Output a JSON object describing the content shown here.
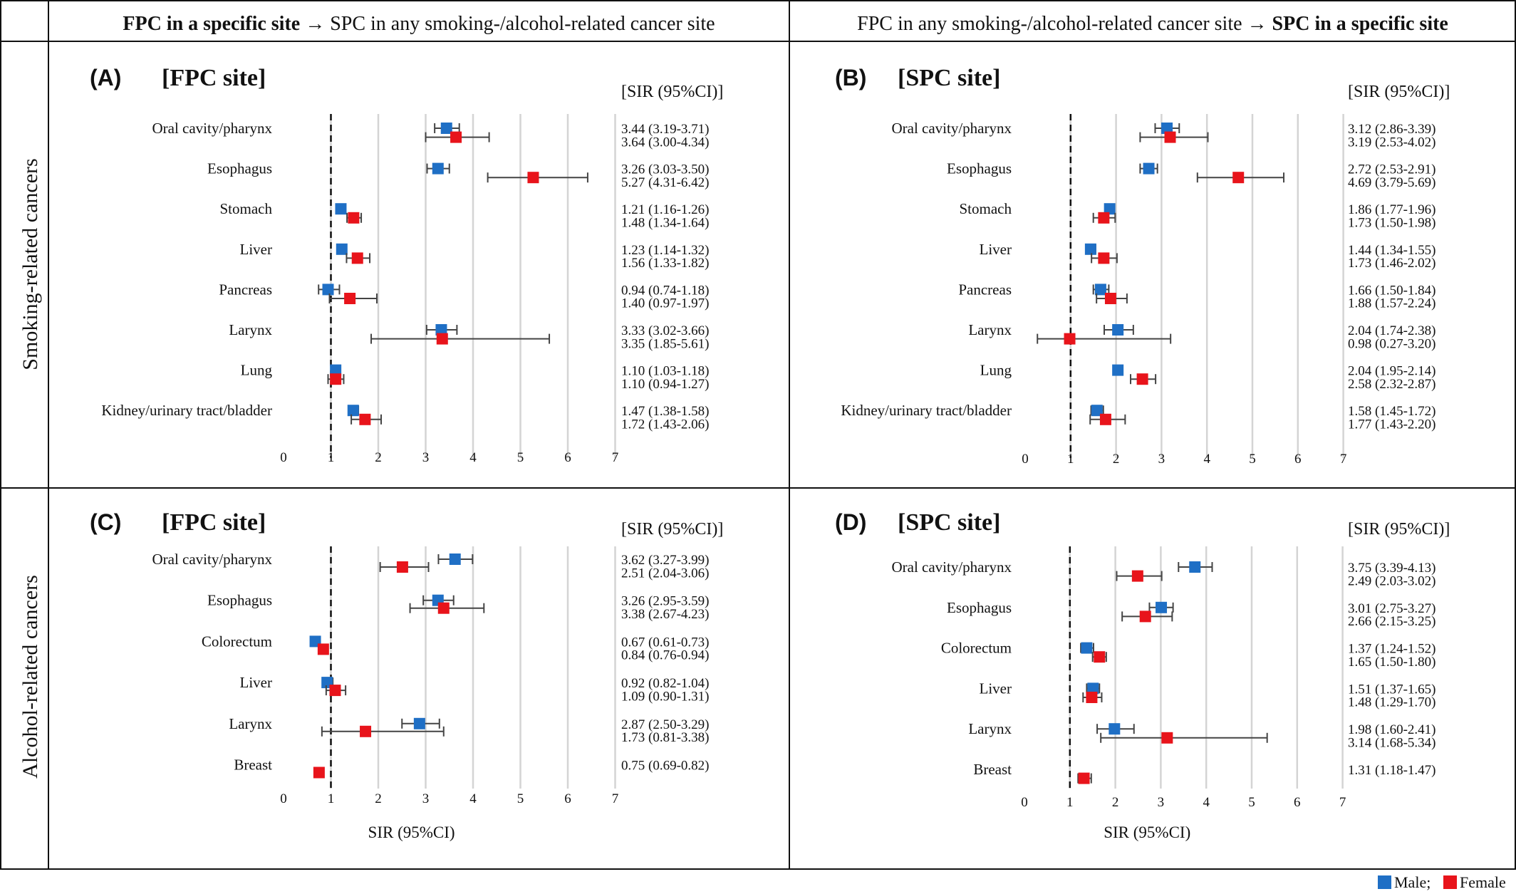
{
  "header": {
    "left": {
      "bold": "FPC in a specific site",
      "rest": " → SPC in any smoking-/alcohol-related  cancer site"
    },
    "right": {
      "rest": "FPC in any smoking-/alcohol-related cancer site → ",
      "bold": "SPC in a specific site"
    }
  },
  "rows": {
    "smoking": "Smoking-related cancers",
    "alcohol": "Alcohol-related cancers"
  },
  "legend": {
    "male": "Male;",
    "female": "Female",
    "male_color": "#1f6fc5",
    "female_color": "#e8141b"
  },
  "chart_data": [
    {
      "type": "forest",
      "panel": "(A)",
      "title": "[FPC site]",
      "stat_header": "[SIR  (95%CI)]",
      "xlim": [
        0,
        7
      ],
      "ticks": [
        0,
        1,
        2,
        3,
        4,
        5,
        6,
        7
      ],
      "reference_line": 1,
      "grid": true,
      "xlabel": "",
      "categories": [
        "Oral cavity/pharynx",
        "Esophagus",
        "Stomach",
        "Liver",
        "Pancreas",
        "Larynx",
        "Lung",
        "Kidney/urinary tract/bladder"
      ],
      "series": [
        {
          "name": "Male",
          "color": "#1f6fc5",
          "values": [
            3.44,
            3.26,
            1.21,
            1.23,
            0.94,
            3.33,
            1.1,
            1.47
          ],
          "lower": [
            3.19,
            3.03,
            1.16,
            1.14,
            0.74,
            3.02,
            1.03,
            1.38
          ],
          "upper": [
            3.71,
            3.5,
            1.26,
            1.32,
            1.18,
            3.66,
            1.18,
            1.58
          ],
          "labels": [
            "3.44 (3.19-3.71)",
            "3.26 (3.03-3.50)",
            "1.21 (1.16-1.26)",
            "1.23 (1.14-1.32)",
            "0.94 (0.74-1.18)",
            "3.33 (3.02-3.66)",
            "1.10 (1.03-1.18)",
            "1.47 (1.38-1.58)"
          ]
        },
        {
          "name": "Female",
          "color": "#e8141b",
          "values": [
            3.64,
            5.27,
            1.48,
            1.56,
            1.4,
            3.35,
            1.1,
            1.72
          ],
          "lower": [
            3.0,
            4.31,
            1.34,
            1.33,
            0.97,
            1.85,
            0.94,
            1.43
          ],
          "upper": [
            4.34,
            6.42,
            1.64,
            1.82,
            1.97,
            5.61,
            1.27,
            2.06
          ],
          "labels": [
            "3.64 (3.00-4.34)",
            "5.27 (4.31-6.42)",
            "1.48 (1.34-1.64)",
            "1.56 (1.33-1.82)",
            "1.40 (0.97-1.97)",
            "3.35 (1.85-5.61)",
            "1.10 (0.94-1.27)",
            "1.72 (1.43-2.06)"
          ]
        }
      ]
    },
    {
      "type": "forest",
      "panel": "(B)",
      "title": "[SPC site]",
      "stat_header": "[SIR  (95%CI)]",
      "xlim": [
        0,
        7
      ],
      "ticks": [
        0,
        1,
        2,
        3,
        4,
        5,
        6,
        7
      ],
      "reference_line": 1,
      "grid": true,
      "xlabel": "",
      "categories": [
        "Oral cavity/pharynx",
        "Esophagus",
        "Stomach",
        "Liver",
        "Pancreas",
        "Larynx",
        "Lung",
        "Kidney/urinary tract/bladder"
      ],
      "series": [
        {
          "name": "Male",
          "color": "#1f6fc5",
          "values": [
            3.12,
            2.72,
            1.86,
            1.44,
            1.66,
            2.04,
            2.04,
            1.58
          ],
          "lower": [
            2.86,
            2.53,
            1.77,
            1.34,
            1.5,
            1.74,
            1.95,
            1.45
          ],
          "upper": [
            3.39,
            2.91,
            1.96,
            1.55,
            1.84,
            2.38,
            2.14,
            1.72
          ],
          "labels": [
            "3.12 (2.86-3.39)",
            "2.72 (2.53-2.91)",
            "1.86 (1.77-1.96)",
            "1.44 (1.34-1.55)",
            "1.66 (1.50-1.84)",
            "2.04 (1.74-2.38)",
            "2.04 (1.95-2.14)",
            "1.58 (1.45-1.72)"
          ]
        },
        {
          "name": "Female",
          "color": "#e8141b",
          "values": [
            3.19,
            4.69,
            1.73,
            1.73,
            1.88,
            0.98,
            2.58,
            1.77
          ],
          "lower": [
            2.53,
            3.79,
            1.5,
            1.46,
            1.57,
            0.27,
            2.32,
            1.43
          ],
          "upper": [
            4.02,
            5.69,
            1.98,
            2.02,
            2.24,
            3.2,
            2.87,
            2.2
          ],
          "labels": [
            "3.19 (2.53-4.02)",
            "4.69 (3.79-5.69)",
            "1.73 (1.50-1.98)",
            "1.73 (1.46-2.02)",
            "1.88 (1.57-2.24)",
            "0.98 (0.27-3.20)",
            "2.58 (2.32-2.87)",
            "1.77 (1.43-2.20)"
          ]
        }
      ]
    },
    {
      "type": "forest",
      "panel": "(C)",
      "title": "[FPC site]",
      "stat_header": "[SIR  (95%CI)]",
      "xlim": [
        0,
        7
      ],
      "ticks": [
        0,
        1,
        2,
        3,
        4,
        5,
        6,
        7
      ],
      "reference_line": 1,
      "grid": true,
      "xlabel": "SIR  (95%CI)",
      "categories": [
        "Oral cavity/pharynx",
        "Esophagus",
        "Colorectum",
        "Liver",
        "Larynx",
        "Breast"
      ],
      "series": [
        {
          "name": "Male",
          "color": "#1f6fc5",
          "values": [
            3.62,
            3.26,
            0.67,
            0.92,
            2.87,
            null
          ],
          "lower": [
            3.27,
            2.95,
            0.61,
            0.82,
            2.5,
            null
          ],
          "upper": [
            3.99,
            3.59,
            0.73,
            1.04,
            3.29,
            null
          ],
          "labels": [
            "3.62 (3.27-3.99)",
            "3.26 (2.95-3.59)",
            "0.67 (0.61-0.73)",
            "0.92 (0.82-1.04)",
            "2.87 (2.50-3.29)",
            null
          ]
        },
        {
          "name": "Female",
          "color": "#e8141b",
          "values": [
            2.51,
            3.38,
            0.84,
            1.09,
            1.73,
            0.75
          ],
          "lower": [
            2.04,
            2.67,
            0.76,
            0.9,
            0.81,
            0.69
          ],
          "upper": [
            3.06,
            4.23,
            0.94,
            1.31,
            3.38,
            0.82
          ],
          "labels": [
            "2.51 (2.04-3.06)",
            "3.38 (2.67-4.23)",
            "0.84 (0.76-0.94)",
            "1.09 (0.90-1.31)",
            "1.73 (0.81-3.38)",
            "0.75 (0.69-0.82)"
          ]
        }
      ]
    },
    {
      "type": "forest",
      "panel": "(D)",
      "title": "[SPC site]",
      "stat_header": "[SIR  (95%CI)]",
      "xlim": [
        0,
        7
      ],
      "ticks": [
        0,
        1,
        2,
        3,
        4,
        5,
        6,
        7
      ],
      "reference_line": 1,
      "grid": true,
      "xlabel": "SIR  (95%CI)",
      "categories": [
        "Oral cavity/pharynx",
        "Esophagus",
        "Colorectum",
        "Liver",
        "Larynx",
        "Breast"
      ],
      "series": [
        {
          "name": "Male",
          "color": "#1f6fc5",
          "values": [
            3.75,
            3.01,
            1.37,
            1.51,
            1.98,
            null
          ],
          "lower": [
            3.39,
            2.75,
            1.24,
            1.37,
            1.6,
            null
          ],
          "upper": [
            4.13,
            3.27,
            1.52,
            1.65,
            2.41,
            null
          ],
          "labels": [
            "3.75 (3.39-4.13)",
            "3.01 (2.75-3.27)",
            "1.37 (1.24-1.52)",
            "1.51 (1.37-1.65)",
            "1.98 (1.60-2.41)",
            null
          ]
        },
        {
          "name": "Female",
          "color": "#e8141b",
          "values": [
            2.49,
            2.66,
            1.65,
            1.48,
            3.14,
            1.31
          ],
          "lower": [
            2.03,
            2.15,
            1.5,
            1.29,
            1.68,
            1.18
          ],
          "upper": [
            3.02,
            3.25,
            1.8,
            1.7,
            5.34,
            1.47
          ],
          "labels": [
            "2.49 (2.03-3.02)",
            "2.66 (2.15-3.25)",
            "1.65 (1.50-1.80)",
            "1.48 (1.29-1.70)",
            "3.14 (1.68-5.34)",
            "1.31 (1.18-1.47)"
          ]
        }
      ]
    }
  ]
}
